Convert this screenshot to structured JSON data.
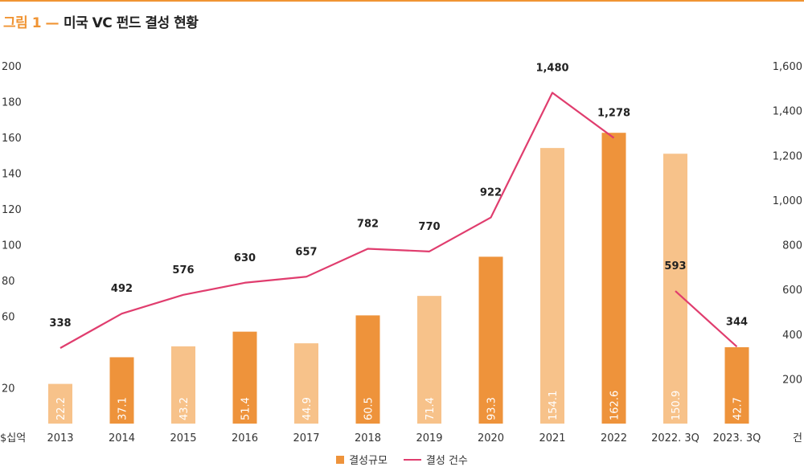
{
  "title": {
    "figure": "그림 1 —",
    "text": "미국 VC 펀드 결성 현황"
  },
  "colors": {
    "accent": "#f09433",
    "bar_dark": "#ee933b",
    "bar_light": "#f7c28a",
    "line": "#e03d6e",
    "title_accent": "#f09433"
  },
  "chart_data": {
    "type": "bar",
    "categories": [
      "2013",
      "2014",
      "2015",
      "2016",
      "2017",
      "2018",
      "2019",
      "2020",
      "2021",
      "2022",
      "2022. 3Q",
      "2023. 3Q"
    ],
    "series": [
      {
        "name": "결성규모",
        "type": "bar",
        "axis": "left",
        "values": [
          22.2,
          37.1,
          43.2,
          51.4,
          44.9,
          60.5,
          71.4,
          93.3,
          154.1,
          162.6,
          150.9,
          42.7
        ],
        "labels": [
          "22.2",
          "37.1",
          "43.2",
          "51.4",
          "44.9",
          "60.5",
          "71.4",
          "93.3",
          "154.1",
          "162.6",
          "150.9",
          "42.7"
        ],
        "shade": [
          "light",
          "dark",
          "light",
          "dark",
          "light",
          "dark",
          "light",
          "dark",
          "light",
          "dark",
          "light",
          "dark"
        ]
      },
      {
        "name": "결성 건수",
        "type": "line",
        "axis": "right",
        "values": [
          338,
          492,
          576,
          630,
          657,
          782,
          770,
          922,
          1480,
          1278,
          593,
          344
        ],
        "labels": [
          "338",
          "492",
          "576",
          "630",
          "657",
          "782",
          "770",
          "922",
          "1,480",
          "1,278",
          "593",
          "344"
        ],
        "segments": [
          [
            0,
            9
          ],
          [
            10,
            11
          ]
        ]
      }
    ],
    "y_left": {
      "unit": "$십억",
      "ticks": [
        20,
        40,
        60,
        80,
        100,
        120,
        140,
        160,
        180,
        200
      ],
      "tick_labels": [
        "20",
        "",
        "60",
        "80",
        "100",
        "120",
        "140",
        "160",
        "180",
        "200"
      ],
      "ylim": [
        0,
        200
      ]
    },
    "y_right": {
      "unit": "건",
      "ticks": [
        200,
        400,
        600,
        800,
        1000,
        1200,
        1400,
        1600
      ],
      "tick_labels": [
        "200",
        "400",
        "600",
        "800",
        "1,000",
        "1,200",
        "1,400",
        "1,600"
      ],
      "ylim": [
        0,
        1600
      ]
    },
    "legend": [
      "결성규모",
      "결성 건수"
    ],
    "legend_position": "bottom-center"
  }
}
